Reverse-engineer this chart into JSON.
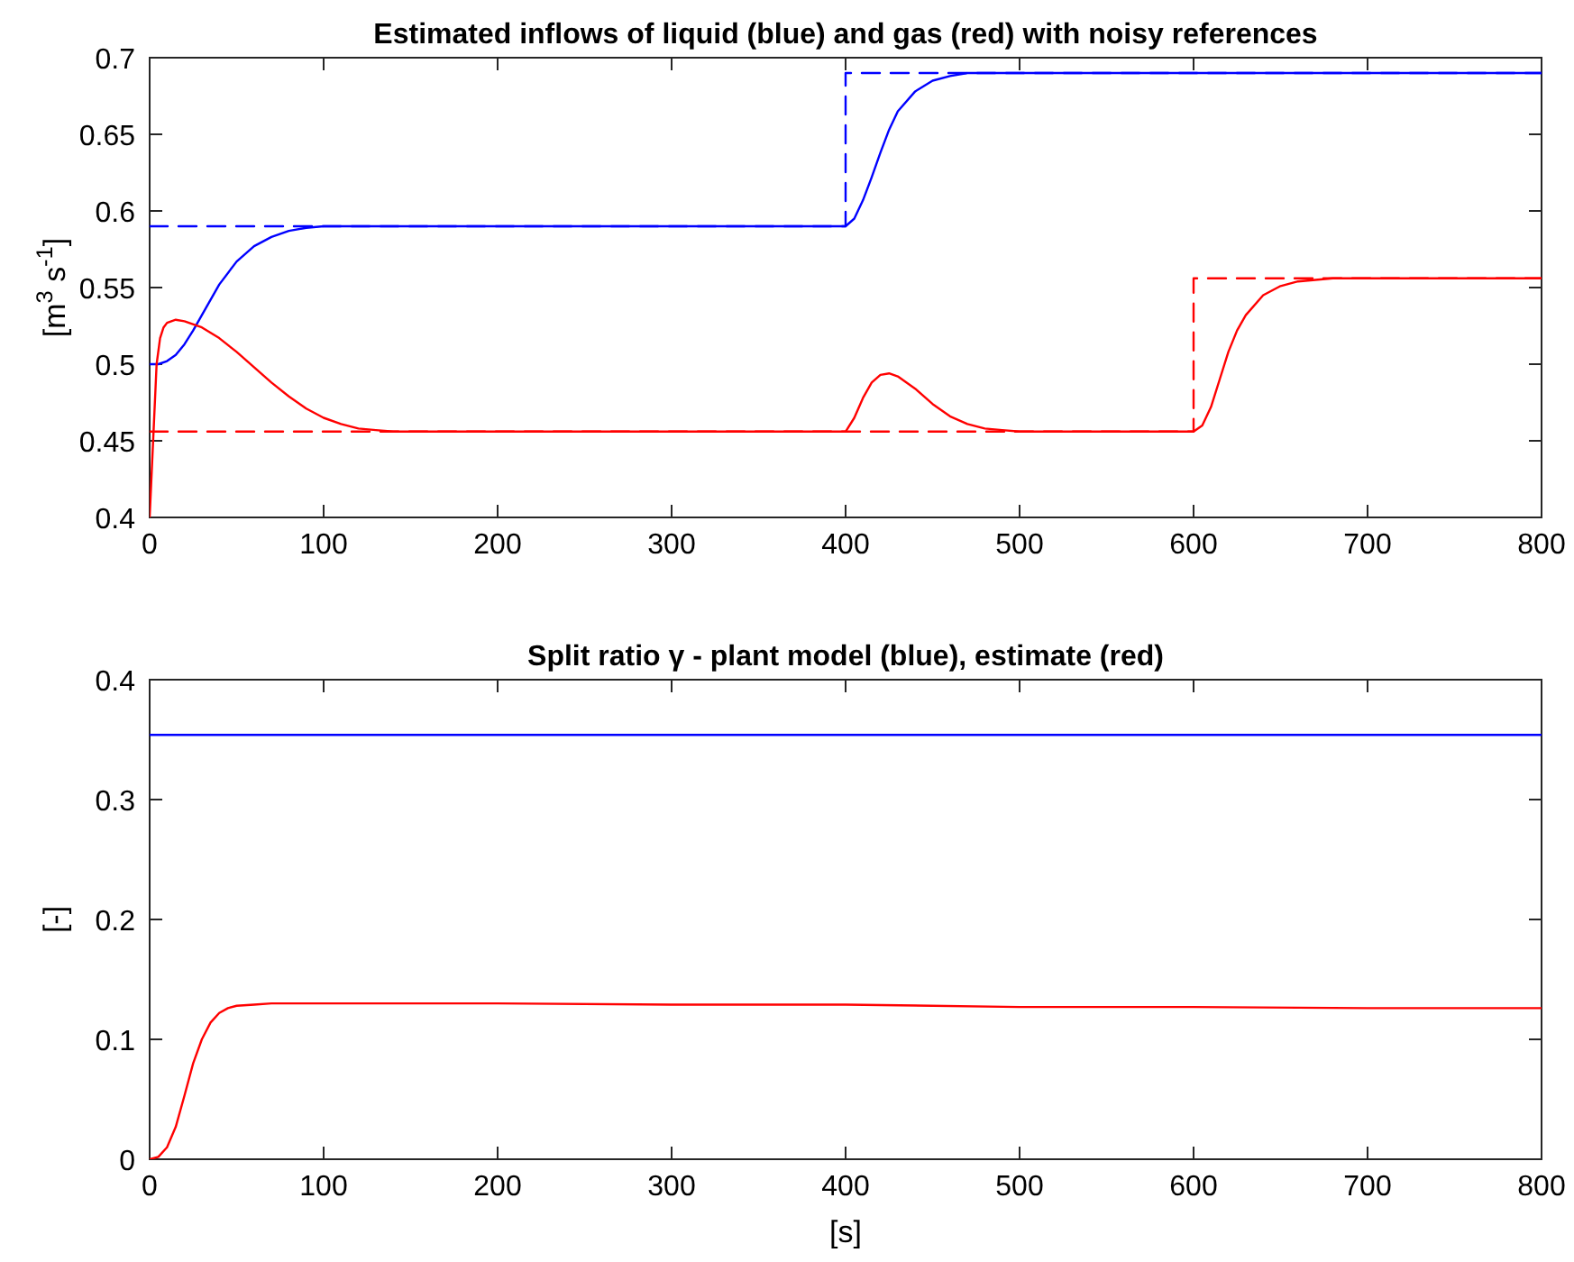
{
  "chart_data": [
    {
      "type": "line",
      "title": "Estimated inflows of liquid (blue) and gas (red) with noisy references",
      "ylabel": "[m$^{3}$ s$^{-1}$]",
      "xlim": [
        0,
        800
      ],
      "ylim": [
        0.4,
        0.7
      ],
      "xticks": [
        0,
        100,
        200,
        300,
        400,
        500,
        600,
        700,
        800
      ],
      "yticks": [
        0.4,
        0.45,
        0.5,
        0.55,
        0.6,
        0.65,
        0.7
      ],
      "grid": false,
      "series": [
        {
          "color": "#0000ff",
          "line_style": "dashed",
          "x": [
            0,
            400,
            400,
            800
          ],
          "values": [
            0.59,
            0.59,
            0.69,
            0.69
          ]
        },
        {
          "color": "#ff0000",
          "line_style": "dashed",
          "x": [
            0,
            600,
            600,
            800
          ],
          "values": [
            0.456,
            0.456,
            0.556,
            0.556
          ]
        },
        {
          "color": "#0000ff",
          "line_style": "solid",
          "x": [
            0,
            5,
            10,
            15,
            20,
            25,
            30,
            40,
            50,
            60,
            70,
            80,
            90,
            100,
            120,
            150,
            200,
            300,
            400,
            405,
            410,
            415,
            420,
            425,
            430,
            440,
            450,
            460,
            470,
            480,
            500,
            550,
            600,
            700,
            800
          ],
          "values": [
            0.5,
            0.5,
            0.502,
            0.506,
            0.513,
            0.522,
            0.532,
            0.552,
            0.567,
            0.577,
            0.583,
            0.587,
            0.589,
            0.59,
            0.59,
            0.59,
            0.59,
            0.59,
            0.59,
            0.595,
            0.607,
            0.622,
            0.638,
            0.653,
            0.665,
            0.678,
            0.685,
            0.688,
            0.69,
            0.69,
            0.69,
            0.69,
            0.69,
            0.69,
            0.69
          ]
        },
        {
          "color": "#ff0000",
          "line_style": "solid",
          "x": [
            0,
            2,
            4,
            6,
            8,
            10,
            15,
            20,
            30,
            40,
            50,
            60,
            70,
            80,
            90,
            100,
            110,
            120,
            130,
            140,
            150,
            170,
            200,
            300,
            400,
            405,
            410,
            415,
            420,
            425,
            430,
            440,
            450,
            460,
            470,
            480,
            490,
            500,
            550,
            600,
            605,
            610,
            615,
            620,
            625,
            630,
            640,
            650,
            660,
            670,
            680,
            700,
            800
          ],
          "values": [
            0.4,
            0.45,
            0.5,
            0.517,
            0.524,
            0.527,
            0.529,
            0.528,
            0.524,
            0.517,
            0.508,
            0.498,
            0.488,
            0.479,
            0.471,
            0.465,
            0.461,
            0.458,
            0.457,
            0.456,
            0.456,
            0.456,
            0.456,
            0.456,
            0.456,
            0.465,
            0.478,
            0.488,
            0.493,
            0.494,
            0.492,
            0.484,
            0.474,
            0.466,
            0.461,
            0.458,
            0.457,
            0.456,
            0.456,
            0.456,
            0.46,
            0.472,
            0.49,
            0.508,
            0.522,
            0.532,
            0.545,
            0.551,
            0.554,
            0.555,
            0.556,
            0.556,
            0.556
          ]
        }
      ]
    },
    {
      "type": "line",
      "title": "Split ratio γ - plant model (blue), estimate (red)",
      "xlabel": "[s]",
      "ylabel": "[-]",
      "xlim": [
        0,
        800
      ],
      "ylim": [
        0,
        0.4
      ],
      "xticks": [
        0,
        100,
        200,
        300,
        400,
        500,
        600,
        700,
        800
      ],
      "yticks": [
        0,
        0.1,
        0.2,
        0.3,
        0.4
      ],
      "grid": false,
      "series": [
        {
          "color": "#0000ff",
          "line_style": "solid",
          "x": [
            0,
            800
          ],
          "values": [
            0.354,
            0.354
          ]
        },
        {
          "color": "#ff0000",
          "line_style": "solid",
          "x": [
            0,
            5,
            10,
            15,
            20,
            25,
            30,
            35,
            40,
            45,
            50,
            60,
            70,
            80,
            100,
            200,
            300,
            400,
            500,
            600,
            700,
            800
          ],
          "values": [
            0,
            0.002,
            0.01,
            0.027,
            0.053,
            0.08,
            0.1,
            0.114,
            0.122,
            0.126,
            0.128,
            0.129,
            0.13,
            0.13,
            0.13,
            0.13,
            0.129,
            0.129,
            0.127,
            0.127,
            0.126,
            0.126
          ]
        }
      ]
    }
  ]
}
